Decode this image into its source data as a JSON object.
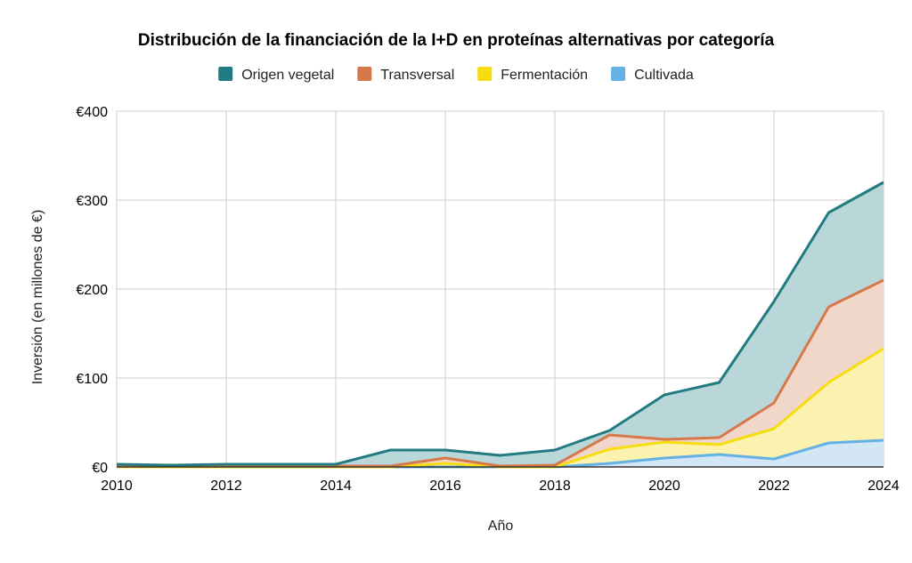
{
  "chart_data": {
    "type": "area",
    "title": "Distribución de la financiación de la I+D en proteínas alternativas por categoría",
    "xlabel": "Año",
    "ylabel": "Inversión (en millones de €)",
    "x": [
      2010,
      2011,
      2012,
      2013,
      2014,
      2015,
      2016,
      2017,
      2018,
      2019,
      2020,
      2021,
      2022,
      2023,
      2024
    ],
    "x_ticks": [
      "2010",
      "2012",
      "2014",
      "2016",
      "2018",
      "2020",
      "2022",
      "2024"
    ],
    "y_ticks": [
      "€0",
      "€100",
      "€200",
      "€300",
      "€400"
    ],
    "ylim": [
      0,
      400
    ],
    "stacked": true,
    "grid": true,
    "legend_position": "top",
    "series": [
      {
        "name": "Cultivada",
        "color": "#64b1e6",
        "fill": "#d2e6f6",
        "values": [
          0,
          0,
          0,
          0,
          0,
          0,
          0,
          0,
          0,
          4,
          10,
          14,
          9,
          27,
          30
        ]
      },
      {
        "name": "Fermentación",
        "color": "#f6dd0d",
        "fill": "#fbf2b0",
        "values": [
          0,
          0,
          0,
          0,
          0,
          0,
          4,
          0,
          0,
          16,
          18,
          11,
          34,
          68,
          103
        ]
      },
      {
        "name": "Transversal",
        "color": "#d6784a",
        "fill": "#f1d6ca",
        "values": [
          1,
          1,
          1,
          1,
          1,
          1,
          6,
          1,
          2,
          16,
          3,
          8,
          29,
          85,
          77
        ]
      },
      {
        "name": "Origen vegetal",
        "color": "#217b80",
        "fill": "#b9d7d9",
        "values": [
          2,
          1,
          2,
          2,
          2,
          18,
          9,
          12,
          17,
          5,
          50,
          62,
          114,
          106,
          110
        ]
      }
    ],
    "legend_order": [
      "Origen vegetal",
      "Transversal",
      "Fermentación",
      "Cultivada"
    ]
  }
}
